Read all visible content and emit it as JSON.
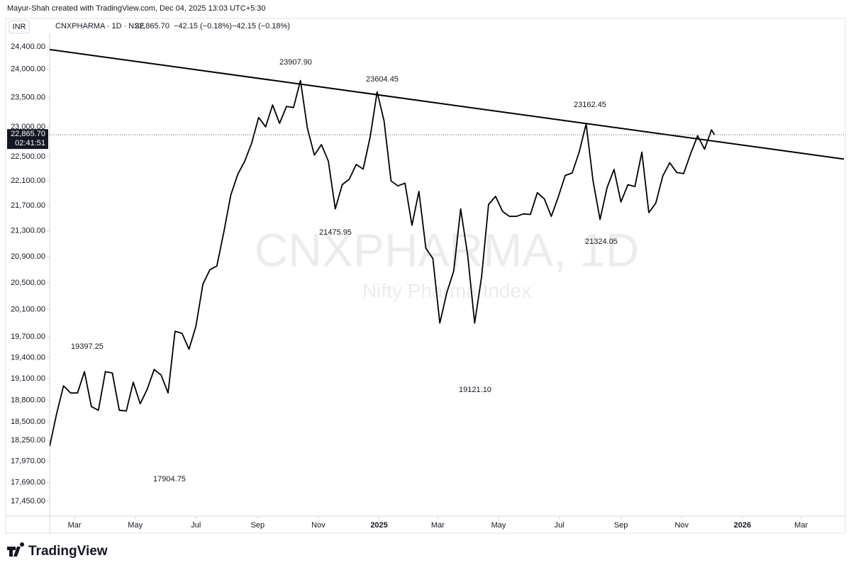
{
  "header": {
    "credit": "Mayur-Shah created with TradingView.com, Dec 04, 2025 13:03 UTC+5:30",
    "currency": "INR",
    "symbol": "CNXPHARMA · 1D · NSE",
    "change": "−42.15 (−0.18%)",
    "change_2": "−42.15 (−0.18%)"
  },
  "watermark": {
    "title": "CNXPHARMA, 1D",
    "subtitle": "Nifty Pharma Index"
  },
  "footer": {
    "brand": "TradingView"
  },
  "chart_data": {
    "type": "line",
    "log_scale": true,
    "grid": false,
    "xlim": [
      "2024-02-05",
      "2026-04-13"
    ],
    "xticks": [
      {
        "value": "2024-03-01",
        "label": "Mar"
      },
      {
        "value": "2024-05-01",
        "label": "May"
      },
      {
        "value": "2024-07-01",
        "label": "Jul"
      },
      {
        "value": "2024-09-01",
        "label": "Sep"
      },
      {
        "value": "2024-11-01",
        "label": "Nov"
      },
      {
        "value": "2025-01-01",
        "label": "2025"
      },
      {
        "value": "2025-03-01",
        "label": "Mar"
      },
      {
        "value": "2025-05-01",
        "label": "May"
      },
      {
        "value": "2025-07-01",
        "label": "Jul"
      },
      {
        "value": "2025-09-01",
        "label": "Sep"
      },
      {
        "value": "2025-11-01",
        "label": "Nov"
      },
      {
        "value": "2026-01-01",
        "label": "2026"
      },
      {
        "value": "2026-03-01",
        "label": "Mar"
      }
    ],
    "ylim": [
      17258,
      24605
    ],
    "yticks": [
      {
        "value": 24400,
        "label": "24,400.00"
      },
      {
        "value": 24000,
        "label": "24,000.00"
      },
      {
        "value": 23500,
        "label": "23,500.00"
      },
      {
        "value": 23000,
        "label": "23,000.00"
      },
      {
        "value": 22500,
        "label": "22,500.00"
      },
      {
        "value": 22100,
        "label": "22,100.00"
      },
      {
        "value": 21700,
        "label": "21,700.00"
      },
      {
        "value": 21300,
        "label": "21,300.00"
      },
      {
        "value": 20900,
        "label": "20,900.00"
      },
      {
        "value": 20500,
        "label": "20,500.00"
      },
      {
        "value": 20100,
        "label": "20,100.00"
      },
      {
        "value": 19700,
        "label": "19,700.00"
      },
      {
        "value": 19400,
        "label": "19,400.00"
      },
      {
        "value": 19100,
        "label": "19,100.00"
      },
      {
        "value": 18800,
        "label": "18,800.00"
      },
      {
        "value": 18500,
        "label": "18,500.00"
      },
      {
        "value": 18250,
        "label": "18,250.00"
      },
      {
        "value": 17970,
        "label": "17,970.00"
      },
      {
        "value": 17690,
        "label": "17,690.00"
      },
      {
        "value": 17450,
        "label": "17,450.00"
      }
    ],
    "last_price": {
      "value": 22865.7,
      "label": "22,865.70"
    },
    "countdown": "02:41:51",
    "series": [
      {
        "name": "CNXPHARMA",
        "color": "#000000",
        "x": [
          "2024-02-05",
          "2024-02-12",
          "2024-02-19",
          "2024-02-26",
          "2024-03-04",
          "2024-03-11",
          "2024-03-18",
          "2024-03-25",
          "2024-04-01",
          "2024-04-08",
          "2024-04-15",
          "2024-04-22",
          "2024-04-29",
          "2024-05-06",
          "2024-05-13",
          "2024-05-20",
          "2024-05-27",
          "2024-06-03",
          "2024-06-10",
          "2024-06-17",
          "2024-06-24",
          "2024-07-01",
          "2024-07-08",
          "2024-07-15",
          "2024-07-22",
          "2024-07-29",
          "2024-08-05",
          "2024-08-12",
          "2024-08-19",
          "2024-08-26",
          "2024-09-02",
          "2024-09-09",
          "2024-09-16",
          "2024-09-23",
          "2024-09-30",
          "2024-10-07",
          "2024-10-14",
          "2024-10-21",
          "2024-10-28",
          "2024-11-04",
          "2024-11-11",
          "2024-11-18",
          "2024-11-25",
          "2024-12-02",
          "2024-12-09",
          "2024-12-16",
          "2024-12-23",
          "2024-12-30",
          "2025-01-06",
          "2025-01-13",
          "2025-01-20",
          "2025-01-27",
          "2025-02-03",
          "2025-02-10",
          "2025-02-17",
          "2025-02-24",
          "2025-03-03",
          "2025-03-10",
          "2025-03-17",
          "2025-03-24",
          "2025-03-31",
          "2025-04-07",
          "2025-04-14",
          "2025-04-21",
          "2025-04-28",
          "2025-05-05",
          "2025-05-12",
          "2025-05-19",
          "2025-05-26",
          "2025-06-02",
          "2025-06-09",
          "2025-06-16",
          "2025-06-23",
          "2025-06-30",
          "2025-07-07",
          "2025-07-14",
          "2025-07-21",
          "2025-07-28",
          "2025-08-04",
          "2025-08-11",
          "2025-08-18",
          "2025-08-25",
          "2025-09-01",
          "2025-09-08",
          "2025-09-15",
          "2025-09-22",
          "2025-09-29",
          "2025-10-06",
          "2025-10-13",
          "2025-10-20",
          "2025-10-27",
          "2025-11-03",
          "2025-11-10",
          "2025-11-17",
          "2025-11-24",
          "2025-12-01",
          "2025-12-04"
        ],
        "values": [
          18170,
          18610,
          19000,
          18900,
          18900,
          19200,
          18710,
          18660,
          19200,
          19180,
          18660,
          18650,
          19050,
          18750,
          18950,
          19230,
          19150,
          18900,
          19780,
          19750,
          19520,
          19855,
          20480,
          20700,
          20756,
          21280,
          21870,
          22210,
          22425,
          22725,
          23160,
          23000,
          23375,
          23060,
          23350,
          23330,
          23800,
          22975,
          22525,
          22700,
          22425,
          21650,
          22040,
          22130,
          22370,
          22295,
          22825,
          23600,
          23100,
          22100,
          22020,
          22065,
          21390,
          21930,
          21030,
          20870,
          19900,
          20350,
          20680,
          21650,
          20920,
          19900,
          20590,
          21720,
          21850,
          21610,
          21530,
          21530,
          21570,
          21560,
          21910,
          21810,
          21530,
          21840,
          22190,
          22230,
          22575,
          23050,
          22100,
          21480,
          21990,
          22290,
          21760,
          22040,
          22010,
          22575,
          21590,
          21740,
          22180,
          22400,
          22240,
          22220,
          22550,
          22850,
          22625,
          22950,
          22865.7
        ]
      }
    ],
    "trendline": {
      "x": [
        "2024-02-05",
        "2026-04-13"
      ],
      "values": [
        24350,
        22460
      ]
    },
    "annotations": [
      "23907.90",
      "23604.45",
      "23162.45",
      "21475.95",
      "21324.05",
      "19397.25",
      "17904.75",
      "19121.10"
    ]
  }
}
